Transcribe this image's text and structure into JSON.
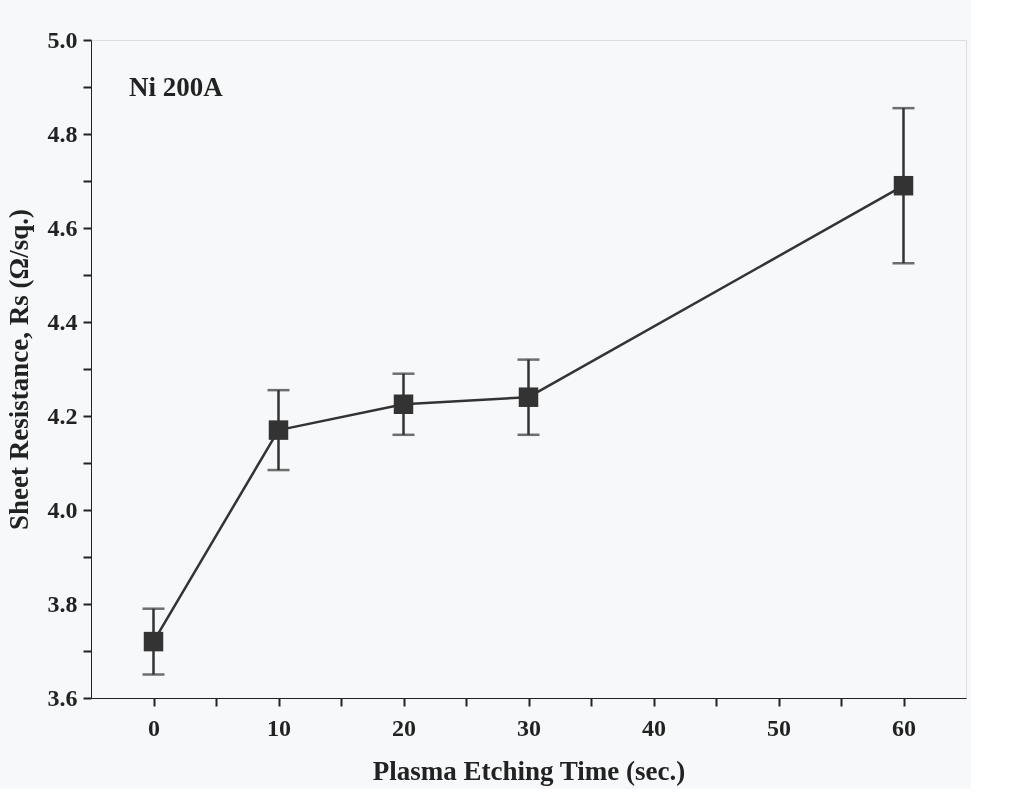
{
  "chart_data": {
    "type": "line",
    "xlabel": "Plasma Etching Time (sec.)",
    "ylabel": "Sheet Resistance, Rs (Ω/sq.)",
    "annotations": [
      "Ni 200A"
    ],
    "x": [
      0,
      10,
      20,
      30,
      60
    ],
    "series": [
      {
        "color": "#333333",
        "values": [
          3.72,
          4.17,
          4.225,
          4.24,
          4.69
        ],
        "errors": [
          0.07,
          0.085,
          0.065,
          0.08,
          0.165
        ]
      }
    ],
    "marker": "square",
    "line_style": "solid",
    "grid": false,
    "xlim": [
      -5,
      65
    ],
    "xticks": [
      0,
      {
        "value": 5,
        "label": null
      },
      10,
      {
        "value": 15,
        "label": null
      },
      20,
      {
        "value": 25,
        "label": null
      },
      30,
      {
        "value": 35,
        "label": null
      },
      40,
      {
        "value": 45,
        "label": null
      },
      50,
      {
        "value": 55,
        "label": null
      },
      60
    ],
    "ylim": [
      3.6,
      5.0
    ],
    "yticks": [
      {
        "value": 3.6,
        "label": "3.6"
      },
      {
        "value": 3.7,
        "label": null
      },
      {
        "value": 3.8,
        "label": "3.8"
      },
      {
        "value": 3.9,
        "label": null
      },
      {
        "value": 4.0,
        "label": "4.0"
      },
      {
        "value": 4.1,
        "label": null
      },
      {
        "value": 4.2,
        "label": "4.2"
      },
      {
        "value": 4.3,
        "label": null
      },
      {
        "value": 4.4,
        "label": "4.4"
      },
      {
        "value": 4.5,
        "label": null
      },
      {
        "value": 4.6,
        "label": "4.6"
      },
      {
        "value": 4.7,
        "label": null
      },
      {
        "value": 4.8,
        "label": "4.8"
      },
      {
        "value": 4.9,
        "label": null
      },
      {
        "value": 5.0,
        "label": "5.0"
      }
    ]
  }
}
